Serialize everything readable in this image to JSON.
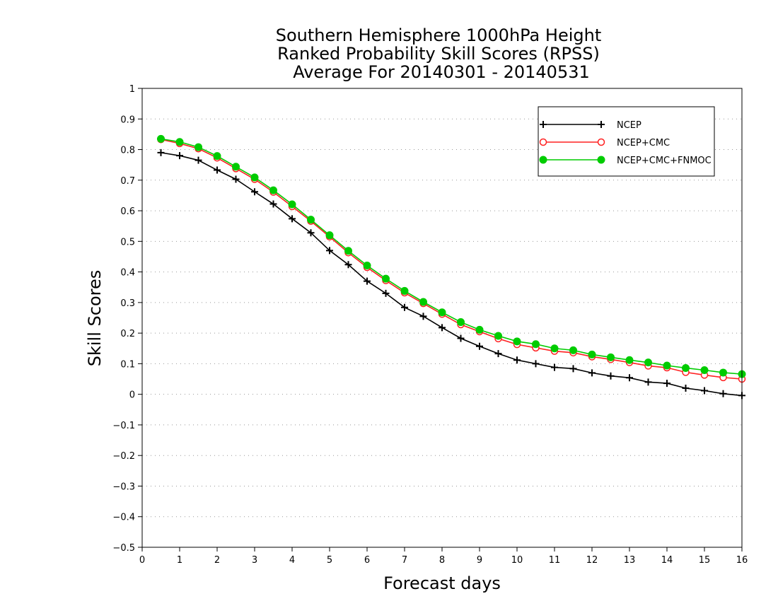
{
  "chart_data": {
    "type": "line",
    "title_lines": [
      "Southern Hemisphere 1000hPa Height",
      "Ranked Probability Skill Scores (RPSS)",
      "Average For 20140301 - 20140531"
    ],
    "xlabel": "Forecast days",
    "ylabel": "Skill Scores",
    "xlim": [
      0,
      16
    ],
    "ylim": [
      -0.5,
      1
    ],
    "x_ticks": [
      0,
      1,
      2,
      3,
      4,
      5,
      6,
      7,
      8,
      9,
      10,
      11,
      12,
      13,
      14,
      15,
      16
    ],
    "y_ticks": [
      -0.5,
      -0.4,
      -0.3,
      -0.2,
      -0.1,
      0,
      0.1,
      0.2,
      0.3,
      0.4,
      0.5,
      0.6,
      0.7,
      0.8,
      0.9,
      1
    ],
    "y_tick_labels": [
      "−0.5",
      "−0.4",
      "−0.3",
      "−0.2",
      "−0.1",
      "0",
      "0.1",
      "0.2",
      "0.3",
      "0.4",
      "0.5",
      "0.6",
      "0.7",
      "0.8",
      "0.9",
      "1"
    ],
    "grid": "horizontal dotted",
    "legend_position": "top-right",
    "x": [
      0.5,
      1,
      1.5,
      2,
      2.5,
      3,
      3.5,
      4,
      4.5,
      5,
      5.5,
      6,
      6.5,
      7,
      7.5,
      8,
      8.5,
      9,
      9.5,
      10,
      10.5,
      11,
      11.5,
      12,
      12.5,
      13,
      13.5,
      14,
      14.5,
      15,
      15.5,
      16
    ],
    "series": [
      {
        "name": "NCEP",
        "color": "#000000",
        "marker": "plus",
        "values": [
          0.79,
          0.78,
          0.765,
          0.733,
          0.703,
          0.662,
          0.622,
          0.574,
          0.528,
          0.47,
          0.424,
          0.37,
          0.33,
          0.284,
          0.255,
          0.218,
          0.183,
          0.157,
          0.133,
          0.112,
          0.1,
          0.088,
          0.084,
          0.07,
          0.06,
          0.054,
          0.04,
          0.036,
          0.02,
          0.012,
          0.002,
          -0.004
        ]
      },
      {
        "name": "NCEP+CMC",
        "color": "#ff2020",
        "marker": "open-circle",
        "values": [
          0.833,
          0.82,
          0.803,
          0.773,
          0.738,
          0.703,
          0.661,
          0.614,
          0.566,
          0.515,
          0.463,
          0.415,
          0.372,
          0.332,
          0.297,
          0.262,
          0.228,
          0.205,
          0.182,
          0.163,
          0.152,
          0.141,
          0.136,
          0.123,
          0.114,
          0.104,
          0.093,
          0.087,
          0.072,
          0.063,
          0.055,
          0.05
        ]
      },
      {
        "name": "NCEP+CMC+FNMOC",
        "color": "#00cc00",
        "marker": "filled-circle",
        "values": [
          0.835,
          0.825,
          0.808,
          0.779,
          0.744,
          0.709,
          0.667,
          0.621,
          0.571,
          0.52,
          0.469,
          0.421,
          0.378,
          0.338,
          0.302,
          0.268,
          0.236,
          0.211,
          0.191,
          0.173,
          0.164,
          0.15,
          0.144,
          0.13,
          0.121,
          0.112,
          0.104,
          0.094,
          0.086,
          0.079,
          0.071,
          0.066
        ]
      }
    ]
  }
}
